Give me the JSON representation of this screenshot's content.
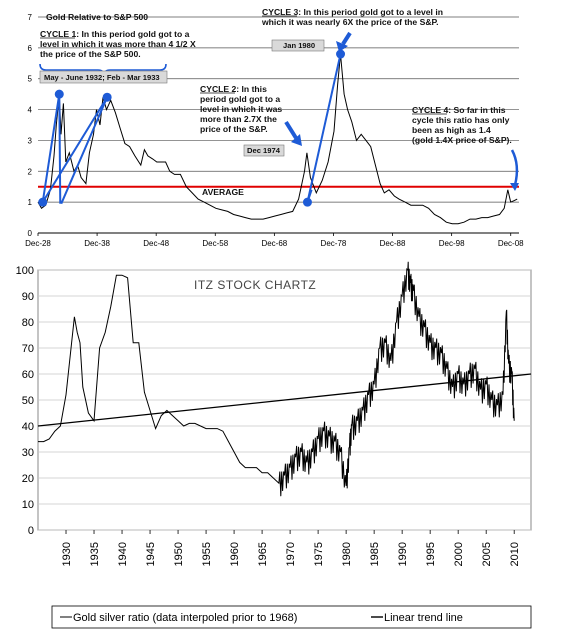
{
  "chart_data": [
    {
      "type": "line",
      "title": "Gold Relative to S&P 500",
      "x_tick_labels": [
        "Dec-28",
        "Dec-38",
        "Dec-48",
        "Dec-58",
        "Dec-68",
        "Dec-78",
        "Dec-88",
        "Dec-98",
        "Dec-08"
      ],
      "x_ticks": [
        1928.9,
        1938.9,
        1948.9,
        1958.9,
        1968.9,
        1978.9,
        1988.9,
        1998.9,
        2008.9
      ],
      "ylim": [
        0,
        7
      ],
      "yticks": [
        0,
        1,
        2,
        3,
        4,
        5,
        6,
        7
      ],
      "xlim": [
        1928.9,
        2010.3
      ],
      "grid": true,
      "reference_line": {
        "label": "AVERAGE",
        "value": 1.5,
        "color": "#e00000"
      },
      "series": [
        {
          "points": [
            [
              1928.9,
              1.0
            ],
            [
              1929.5,
              0.8
            ],
            [
              1930.2,
              0.9
            ],
            [
              1931.0,
              1.4
            ],
            [
              1931.6,
              2.5
            ],
            [
              1932.0,
              3.5
            ],
            [
              1932.5,
              4.5
            ],
            [
              1932.8,
              3.2
            ],
            [
              1933.2,
              4.2
            ],
            [
              1933.6,
              2.3
            ],
            [
              1934.2,
              2.6
            ],
            [
              1935.0,
              2.0
            ],
            [
              1935.6,
              2.2
            ],
            [
              1936.2,
              1.8
            ],
            [
              1937.0,
              1.6
            ],
            [
              1937.6,
              2.6
            ],
            [
              1938.3,
              3.2
            ],
            [
              1938.8,
              4.0
            ],
            [
              1939.4,
              3.5
            ],
            [
              1939.9,
              4.4
            ],
            [
              1940.5,
              4.0
            ],
            [
              1941.2,
              4.3
            ],
            [
              1942.0,
              3.9
            ],
            [
              1942.8,
              3.4
            ],
            [
              1943.6,
              2.9
            ],
            [
              1944.4,
              2.8
            ],
            [
              1945.3,
              2.5
            ],
            [
              1946.3,
              2.2
            ],
            [
              1946.9,
              2.7
            ],
            [
              1947.5,
              2.5
            ],
            [
              1948.3,
              2.4
            ],
            [
              1949.0,
              2.3
            ],
            [
              1949.8,
              2.3
            ],
            [
              1950.5,
              2.3
            ],
            [
              1951.2,
              2.0
            ],
            [
              1952.0,
              1.9
            ],
            [
              1953.0,
              1.9
            ],
            [
              1954.0,
              1.5
            ],
            [
              1955.0,
              1.3
            ],
            [
              1956.0,
              1.1
            ],
            [
              1957.0,
              1.0
            ],
            [
              1958.0,
              0.9
            ],
            [
              1959.0,
              0.8
            ],
            [
              1960.0,
              0.75
            ],
            [
              1961.0,
              0.7
            ],
            [
              1962.0,
              0.6
            ],
            [
              1963.0,
              0.55
            ],
            [
              1964.0,
              0.5
            ],
            [
              1965.0,
              0.45
            ],
            [
              1966.0,
              0.45
            ],
            [
              1967.0,
              0.45
            ],
            [
              1968.0,
              0.5
            ],
            [
              1969.0,
              0.55
            ],
            [
              1970.0,
              0.6
            ],
            [
              1971.0,
              0.65
            ],
            [
              1972.0,
              0.7
            ],
            [
              1973.0,
              1.1
            ],
            [
              1974.0,
              2.0
            ],
            [
              1974.4,
              2.6
            ],
            [
              1975.0,
              1.8
            ],
            [
              1976.0,
              1.3
            ],
            [
              1977.0,
              1.7
            ],
            [
              1978.0,
              2.3
            ],
            [
              1979.0,
              3.3
            ],
            [
              1979.6,
              4.8
            ],
            [
              1980.1,
              5.8
            ],
            [
              1980.7,
              4.5
            ],
            [
              1981.3,
              4.0
            ],
            [
              1982.0,
              3.6
            ],
            [
              1982.8,
              3.0
            ],
            [
              1983.6,
              3.2
            ],
            [
              1984.4,
              3.0
            ],
            [
              1985.2,
              2.8
            ],
            [
              1986.0,
              2.2
            ],
            [
              1986.8,
              1.6
            ],
            [
              1987.5,
              1.3
            ],
            [
              1988.3,
              1.4
            ],
            [
              1989.2,
              1.2
            ],
            [
              1990.0,
              1.1
            ],
            [
              1991.0,
              1.0
            ],
            [
              1992.0,
              0.9
            ],
            [
              1993.0,
              0.9
            ],
            [
              1994.0,
              0.9
            ],
            [
              1995.0,
              0.8
            ],
            [
              1996.0,
              0.6
            ],
            [
              1997.0,
              0.5
            ],
            [
              1998.0,
              0.35
            ],
            [
              1999.0,
              0.3
            ],
            [
              2000.0,
              0.3
            ],
            [
              2001.0,
              0.35
            ],
            [
              2002.0,
              0.45
            ],
            [
              2003.0,
              0.45
            ],
            [
              2004.0,
              0.5
            ],
            [
              2005.0,
              0.5
            ],
            [
              2006.0,
              0.55
            ],
            [
              2007.0,
              0.6
            ],
            [
              2007.8,
              0.8
            ],
            [
              2008.4,
              1.4
            ],
            [
              2008.9,
              1.0
            ],
            [
              2009.5,
              1.05
            ],
            [
              2010.0,
              1.1
            ]
          ]
        }
      ],
      "annotations": {
        "cycle1_text": [
          "CYCLE 1: In this period gold got to a",
          "level in which it was more than 4 1/2 X",
          "the price of the S&P 500."
        ],
        "cycle1_box": "May - June 1932; Feb - Mar 1933",
        "cycle2_text": [
          "CYCLE 2: In this",
          "period gold got to a",
          "level in which it was",
          "more than 2.7X the",
          "price of the S&P."
        ],
        "cycle2_box": "Dec 1974",
        "cycle3_text": [
          "CYCLE 3: In this period gold got to a level in",
          "which it was nearly 6X the price of the S&P."
        ],
        "cycle3_box": "Jan 1980",
        "cycle4_text": [
          "CYCLE 4: So far in this",
          "cycle this ratio has only",
          "been as high as 1.4",
          "(gold 1.4X price of S&P)."
        ]
      }
    },
    {
      "type": "line",
      "title": "ITZ STOCK CHARTZ",
      "xlim": [
        1925,
        2013
      ],
      "ylim": [
        0,
        100
      ],
      "yticks": [
        0,
        10,
        20,
        30,
        40,
        50,
        60,
        70,
        80,
        90,
        100
      ],
      "xticks": [
        1930,
        1935,
        1940,
        1945,
        1950,
        1955,
        1960,
        1965,
        1970,
        1975,
        1980,
        1985,
        1990,
        1995,
        2000,
        2005,
        2010
      ],
      "grid": true,
      "legend_position": "bottom",
      "series": [
        {
          "name": "Gold silver ratio (data interpoled prior to 1968)",
          "points": [
            [
              1925,
              34
            ],
            [
              1926,
              34
            ],
            [
              1927,
              35
            ],
            [
              1928,
              38
            ],
            [
              1929,
              40
            ],
            [
              1930,
              52
            ],
            [
              1931,
              72
            ],
            [
              1931.5,
              82
            ],
            [
              1932,
              76
            ],
            [
              1932.5,
              72
            ],
            [
              1933,
              55
            ],
            [
              1934,
              45
            ],
            [
              1935,
              42
            ],
            [
              1936,
              70
            ],
            [
              1937,
              76
            ],
            [
              1938,
              86
            ],
            [
              1939,
              98
            ],
            [
              1940,
              98
            ],
            [
              1941,
              97
            ],
            [
              1942,
              72
            ],
            [
              1943,
              72
            ],
            [
              1944,
              53
            ],
            [
              1945,
              46
            ],
            [
              1946,
              39
            ],
            [
              1947,
              44
            ],
            [
              1948,
              46
            ],
            [
              1949,
              44
            ],
            [
              1950,
              42
            ],
            [
              1951,
              40
            ],
            [
              1952,
              41
            ],
            [
              1953,
              41
            ],
            [
              1954,
              40
            ],
            [
              1955,
              39
            ],
            [
              1956,
              39
            ],
            [
              1957,
              39
            ],
            [
              1958,
              38
            ],
            [
              1959,
              34
            ],
            [
              1960,
              30
            ],
            [
              1961,
              26
            ],
            [
              1962,
              24
            ],
            [
              1963,
              24
            ],
            [
              1964,
              24
            ],
            [
              1965,
              22
            ],
            [
              1966,
              22
            ],
            [
              1967,
              20
            ],
            [
              1968,
              18
            ],
            [
              1969,
              21
            ],
            [
              1970,
              24
            ],
            [
              1971,
              28
            ],
            [
              1972,
              30
            ],
            [
              1973,
              26
            ],
            [
              1974,
              30
            ],
            [
              1975,
              35
            ],
            [
              1976,
              38
            ],
            [
              1977,
              36
            ],
            [
              1978,
              34
            ],
            [
              1979,
              30
            ],
            [
              1980,
              17
            ],
            [
              1980.6,
              32
            ],
            [
              1981,
              40
            ],
            [
              1982,
              42
            ],
            [
              1983,
              46
            ],
            [
              1984,
              52
            ],
            [
              1985,
              56
            ],
            [
              1986,
              70
            ],
            [
              1987,
              72
            ],
            [
              1988,
              65
            ],
            [
              1989,
              80
            ],
            [
              1990,
              90
            ],
            [
              1991,
              100
            ],
            [
              1991.5,
              95
            ],
            [
              1992,
              92
            ],
            [
              1993,
              82
            ],
            [
              1994,
              78
            ],
            [
              1995,
              72
            ],
            [
              1996,
              70
            ],
            [
              1997,
              68
            ],
            [
              1998,
              62
            ],
            [
              1999,
              55
            ],
            [
              2000,
              60
            ],
            [
              2001,
              56
            ],
            [
              2002,
              60
            ],
            [
              2003,
              62
            ],
            [
              2004,
              54
            ],
            [
              2005,
              56
            ],
            [
              2006,
              50
            ],
            [
              2007,
              48
            ],
            [
              2008,
              52
            ],
            [
              2008.6,
              84
            ],
            [
              2009,
              64
            ],
            [
              2009.6,
              60
            ],
            [
              2010,
              42
            ]
          ]
        },
        {
          "name": "Linear trend line",
          "points": [
            [
              1925,
              40
            ],
            [
              2013,
              60
            ]
          ]
        }
      ]
    }
  ]
}
